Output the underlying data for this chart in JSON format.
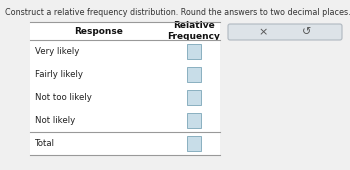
{
  "title": "Construct a relative frequency distribution. Round the answers to two decimal places.",
  "col_headers": [
    "Response",
    "Relative\nFrequency"
  ],
  "rows": [
    "Very likely",
    "Fairly likely",
    "Not too likely",
    "Not likely",
    "Total"
  ],
  "total_row_index": 4,
  "background_color": "#f0f0f0",
  "table_bg": "#ffffff",
  "box_color": "#c8dde8",
  "box_border": "#8ab0c0",
  "button_bg": "#dde3e8",
  "button_border": "#b0b8c0",
  "title_fontsize": 5.8,
  "header_fontsize": 6.5,
  "row_fontsize": 6.2,
  "title_color": "#333333",
  "header_color": "#111111",
  "row_color": "#222222",
  "line_color": "#999999"
}
